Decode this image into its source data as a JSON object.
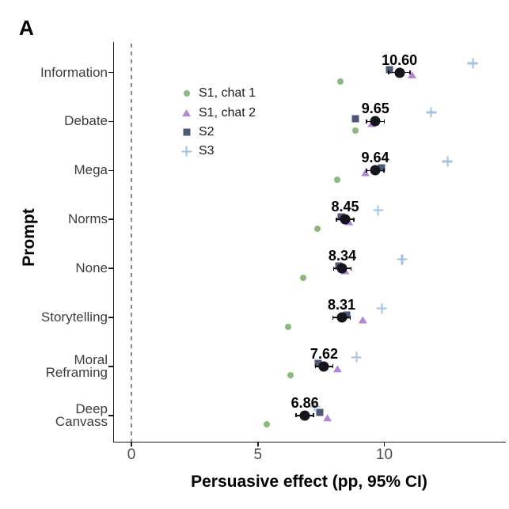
{
  "panel_label": "A",
  "chart_data": {
    "type": "scatter",
    "title": "",
    "xlabel": "Persuasive effect (pp, 95% CI)",
    "ylabel": "Prompt",
    "xticks": [
      0,
      5,
      10
    ],
    "xlim": [
      -0.7,
      14.8
    ],
    "grid": false,
    "legend_position": "inside-top-left",
    "zero_line": {
      "value": 0,
      "style": "dashed",
      "color": "#878787"
    },
    "categories": [
      "Information",
      "Debate",
      "Mega",
      "Norms",
      "None",
      "Storytelling",
      "Moral\nReframing",
      "Deep\nCanvass"
    ],
    "pooled": {
      "name": "Pooled estimate",
      "marker": "circle",
      "color": "#15151e",
      "values": [
        10.6,
        9.65,
        9.64,
        8.45,
        8.34,
        8.31,
        7.62,
        6.86
      ],
      "labels": [
        "10.60",
        "9.65",
        "9.64",
        "8.45",
        "8.34",
        "8.31",
        "7.62",
        "6.86"
      ],
      "ci_half": [
        0.45,
        0.38,
        0.37,
        0.37,
        0.37,
        0.37,
        0.37,
        0.37
      ]
    },
    "series": [
      {
        "name": "S1, chat 1",
        "marker": "circle",
        "color": "#8cb87d",
        "values": [
          8.25,
          8.85,
          8.15,
          7.35,
          6.8,
          6.2,
          6.3,
          5.35
        ]
      },
      {
        "name": "S1, chat 2",
        "marker": "triangle",
        "color": "#b185d8",
        "values": [
          11.1,
          9.5,
          9.25,
          8.6,
          8.45,
          9.15,
          8.15,
          7.75
        ]
      },
      {
        "name": "S2",
        "marker": "square",
        "color": "#4d5878",
        "values": [
          10.2,
          8.85,
          9.9,
          8.3,
          8.2,
          8.5,
          7.4,
          7.45
        ]
      },
      {
        "name": "S3",
        "marker": "plus",
        "color": "#9fc2e5",
        "values": [
          13.5,
          11.85,
          12.5,
          9.75,
          10.7,
          9.9,
          8.9,
          7.25
        ]
      }
    ]
  }
}
